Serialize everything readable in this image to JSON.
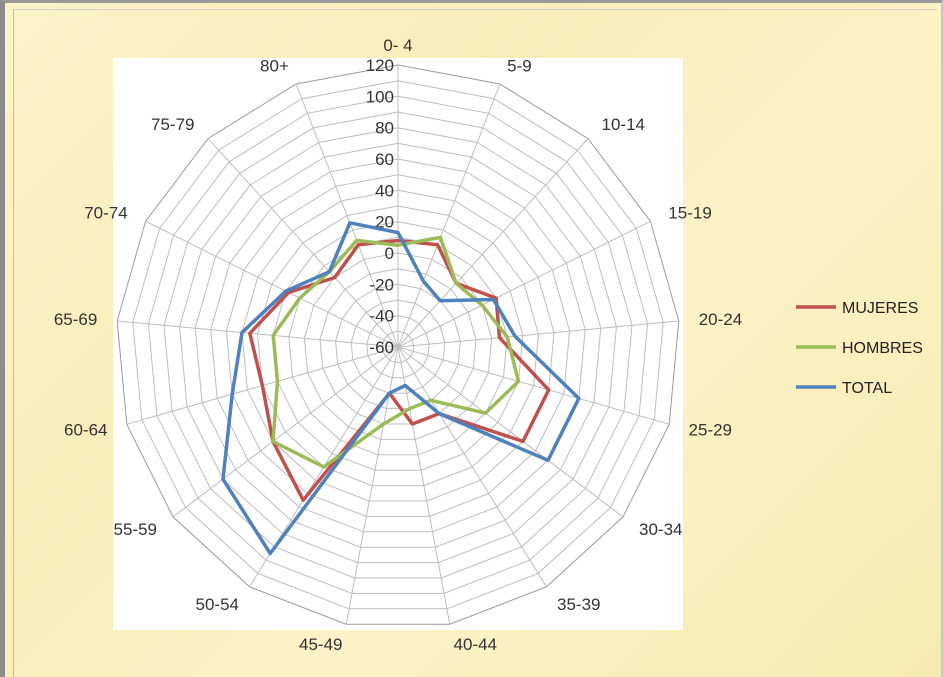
{
  "chart_data": {
    "type": "radar",
    "title": "",
    "categories": [
      "0- 4",
      "5-9",
      "10-14",
      "15-19",
      "20-24",
      "25-29",
      "30-34",
      "35-39",
      "40-44",
      "45-49",
      "50-54",
      "55-59",
      "60-64",
      "65-69",
      "70-74",
      "75-79",
      "80+"
    ],
    "ticks": [
      120,
      100,
      80,
      60,
      40,
      20,
      0,
      -20,
      -40,
      -60
    ],
    "range": [
      -60,
      120
    ],
    "grid": true,
    "legend_position": "right",
    "series": [
      {
        "name": "MUJERES",
        "color": "#c0504d",
        "values": [
          8,
          10,
          -5,
          10,
          5,
          40,
          40,
          -10,
          -10,
          -30,
          55,
          40,
          30,
          35,
          18,
          0,
          10
        ]
      },
      {
        "name": "HOMBRES",
        "color": "#9bbb59",
        "values": [
          5,
          15,
          -5,
          0,
          10,
          20,
          10,
          -20,
          -20,
          -10,
          30,
          40,
          20,
          20,
          10,
          5,
          13
        ]
      },
      {
        "name": "TOTAL",
        "color": "#4f81bd",
        "values": [
          13,
          -15,
          -20,
          8,
          15,
          60,
          60,
          -10,
          -35,
          -30,
          95,
          80,
          50,
          40,
          20,
          5,
          25
        ]
      }
    ]
  }
}
